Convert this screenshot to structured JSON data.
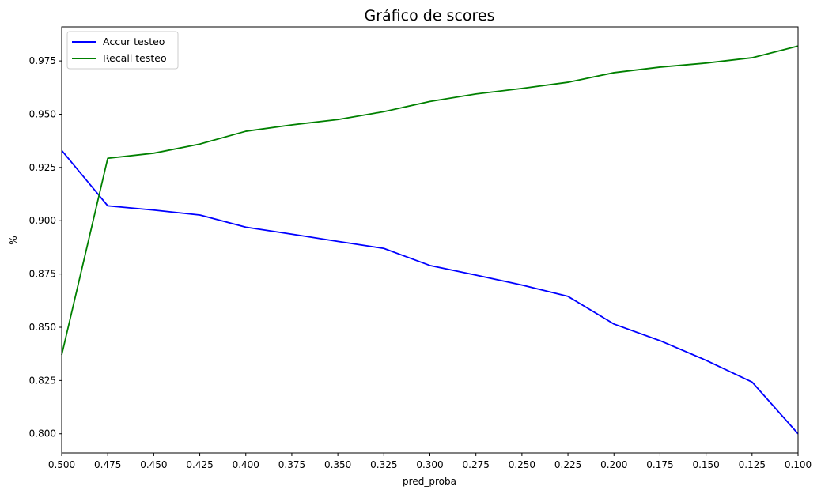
{
  "chart_data": {
    "type": "line",
    "title": "Gráfico de scores",
    "xlabel": "pred_proba",
    "ylabel": "%",
    "x": [
      0.5,
      0.475,
      0.45,
      0.425,
      0.4,
      0.375,
      0.35,
      0.325,
      0.3,
      0.275,
      0.25,
      0.225,
      0.2,
      0.175,
      0.15,
      0.125,
      0.1
    ],
    "xlim": [
      0.5,
      0.1
    ],
    "ylim": [
      0.791,
      0.991
    ],
    "x_ticks": [
      "0.500",
      "0.475",
      "0.450",
      "0.425",
      "0.400",
      "0.375",
      "0.350",
      "0.325",
      "0.300",
      "0.275",
      "0.250",
      "0.225",
      "0.200",
      "0.175",
      "0.150",
      "0.125",
      "0.100"
    ],
    "y_ticks": [
      "0.800",
      "0.825",
      "0.850",
      "0.875",
      "0.900",
      "0.925",
      "0.950",
      "0.975"
    ],
    "grid": false,
    "legend_position": "top-left",
    "series": [
      {
        "name": "Accur testeo",
        "color": "#0000ff",
        "values": [
          0.933,
          0.907,
          0.905,
          0.9027,
          0.897,
          0.8937,
          0.8903,
          0.887,
          0.879,
          0.8745,
          0.8698,
          0.8645,
          0.8515,
          0.8437,
          0.8345,
          0.8243,
          0.8
        ]
      },
      {
        "name": "Recall testeo",
        "color": "#008000",
        "values": [
          0.837,
          0.9293,
          0.9317,
          0.936,
          0.942,
          0.945,
          0.9475,
          0.9512,
          0.956,
          0.9595,
          0.9621,
          0.965,
          0.9695,
          0.9721,
          0.974,
          0.9765,
          0.982
        ]
      }
    ]
  }
}
